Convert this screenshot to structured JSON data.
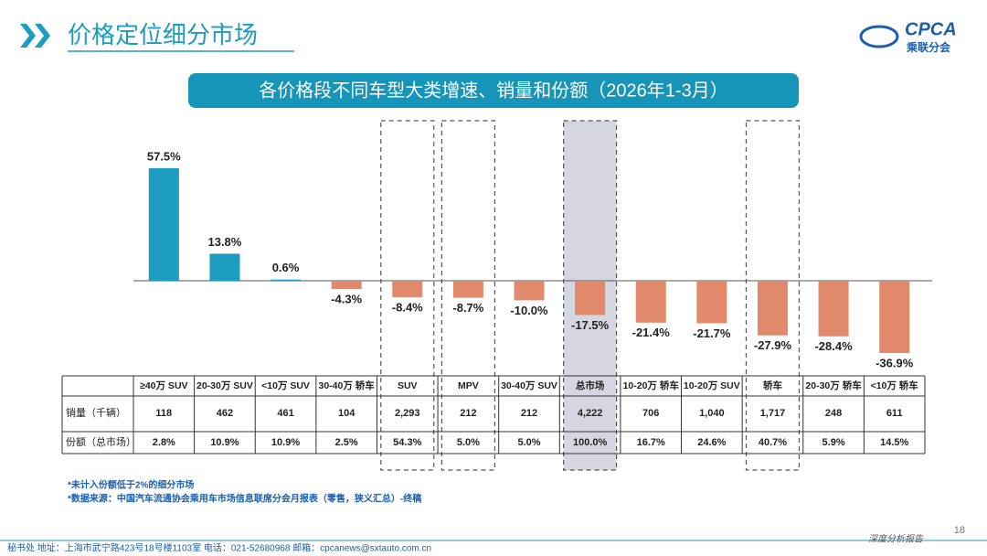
{
  "header": {
    "title": "价格定位细分市场",
    "logo": "CPCA",
    "logo_subtitle": "乘联分会"
  },
  "chart_data": {
    "type": "bar",
    "title": "各价格段不同车型大类增速、销量和份额（2026年1-3月）",
    "categories": [
      "≥40万 SUV",
      "20-30万 SUV",
      "<10万 SUV",
      "30-40万 轿车",
      "SUV",
      "MPV",
      "30-40万 SUV",
      "总市场",
      "10-20万 轿车",
      "10-20万 SUV",
      "轿车",
      "20-30万 轿车",
      "<10万 轿车"
    ],
    "values": [
      57.5,
      13.8,
      0.6,
      -4.3,
      -8.4,
      -8.7,
      -10.0,
      -17.5,
      -21.4,
      -21.7,
      -27.9,
      -28.4,
      -36.9
    ],
    "value_labels": [
      "57.5%",
      "13.8%",
      "0.6%",
      "-4.3%",
      "-8.4%",
      "-8.7%",
      "-10.0%",
      "-17.5%",
      "-21.4%",
      "-21.7%",
      "-27.9%",
      "-28.4%",
      "-36.9%"
    ],
    "positive_color": "#1b9cc0",
    "negative_color": "#e0896b"
  },
  "table": {
    "row_labels": [
      "销量（千辆）",
      "份额（总市场）"
    ],
    "rows": [
      [
        "118",
        "462",
        "461",
        "104",
        "2,293",
        "212",
        "212",
        "4,222",
        "706",
        "1,040",
        "1,717",
        "248",
        "611"
      ],
      [
        "2.8%",
        "10.9%",
        "10.9%",
        "2.5%",
        "54.3%",
        "5.0%",
        "5.0%",
        "100.0%",
        "16.7%",
        "24.6%",
        "40.7%",
        "5.9%",
        "14.5%"
      ]
    ]
  },
  "notes": [
    "*未计入份额低于2%的细分市场",
    "*数据来源：中国汽车流通协会乘用车市场信息联席分会月报表（零售，狭义汇总）-终稿"
  ],
  "footer": {
    "address": "秘书处   地址：上海市武宁路423号18号楼1103室   电话：021-52680968   邮箱：cpcanews@sxtauto.com.cn",
    "report": "深度分析报告",
    "page": "18"
  }
}
